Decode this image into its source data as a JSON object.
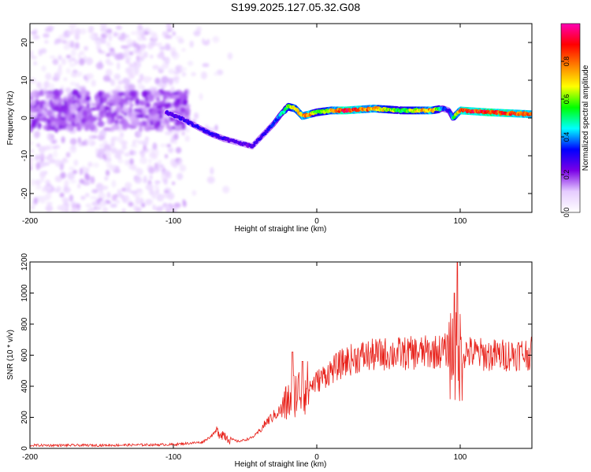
{
  "title": "S199.2025.127.05.32.G08",
  "chart_data": [
    {
      "type": "heatmap",
      "xlabel": "Height of straight line (km)",
      "ylabel": "Frequency (Hz)",
      "xlim": [
        -200,
        150
      ],
      "ylim": [
        -25,
        25
      ],
      "xticks": [
        -200,
        -100,
        0,
        100
      ],
      "yticks": [
        -20,
        -10,
        0,
        10,
        20
      ],
      "colorbar": {
        "label": "Normalized spectral amplitude",
        "range": [
          0,
          1
        ],
        "ticks": [
          "0.0",
          "0.2",
          "0.4",
          "0.6",
          "0.8"
        ],
        "colors": [
          "#ffffff",
          "#e6ccff",
          "#7a00e6",
          "#0000ff",
          "#00ffff",
          "#00ff00",
          "#ffff00",
          "#ff8000",
          "#ff0000",
          "#ff00b4"
        ]
      },
      "ridge": {
        "x": [
          -105,
          -95,
          -85,
          -75,
          -65,
          -55,
          -45,
          -40,
          -35,
          -30,
          -25,
          -20,
          -15,
          -10,
          -5,
          0,
          10,
          20,
          40,
          60,
          80,
          88,
          92,
          95,
          100,
          120,
          150
        ],
        "frequency": [
          1.5,
          0,
          -2,
          -4,
          -5.5,
          -6.5,
          -7.5,
          -5.5,
          -3.5,
          -1.5,
          1,
          3,
          2.5,
          0.5,
          1,
          1.5,
          2,
          2,
          2.5,
          2,
          2,
          2.5,
          2,
          0,
          2,
          1.5,
          1
        ],
        "amplitude": [
          0.25,
          0.28,
          0.3,
          0.3,
          0.28,
          0.25,
          0.25,
          0.3,
          0.3,
          0.35,
          0.45,
          0.6,
          0.7,
          0.75,
          0.8,
          0.55,
          0.7,
          0.9,
          0.75,
          0.55,
          0.8,
          0.4,
          0.3,
          0.5,
          0.85,
          0.9,
          0.8
        ]
      }
    },
    {
      "type": "line",
      "xlabel": "Height of straight line (km)",
      "ylabel": "SNR (10 * v/v)",
      "xlim": [
        -200,
        150
      ],
      "ylim": [
        0,
        1200
      ],
      "xticks": [
        -200,
        -100,
        0,
        100
      ],
      "yticks": [
        0,
        200,
        400,
        600,
        800,
        1000,
        1200
      ],
      "color": "#e8221b",
      "series": [
        {
          "x": [
            -200,
            -150,
            -100,
            -80,
            -75,
            -70,
            -65,
            -60,
            -55,
            -50,
            -45,
            -40,
            -35,
            -30,
            -25,
            -20,
            -15,
            -10,
            -5,
            0,
            10,
            20,
            30,
            40,
            50,
            60,
            70,
            80,
            90,
            95,
            98,
            100,
            105,
            110,
            120,
            130,
            140,
            150
          ],
          "y": [
            20,
            20,
            25,
            40,
            70,
            110,
            90,
            60,
            45,
            55,
            70,
            110,
            170,
            210,
            250,
            300,
            360,
            380,
            400,
            430,
            500,
            560,
            590,
            600,
            610,
            610,
            615,
            620,
            630,
            620,
            550,
            610,
            620,
            610,
            600,
            600,
            610,
            610
          ]
        }
      ],
      "spikes": [
        {
          "x": -17,
          "y": 620
        },
        {
          "x": -10,
          "y": 560
        },
        {
          "x": 96,
          "y": 1000
        },
        {
          "x": 98,
          "y": 1200
        }
      ]
    }
  ]
}
